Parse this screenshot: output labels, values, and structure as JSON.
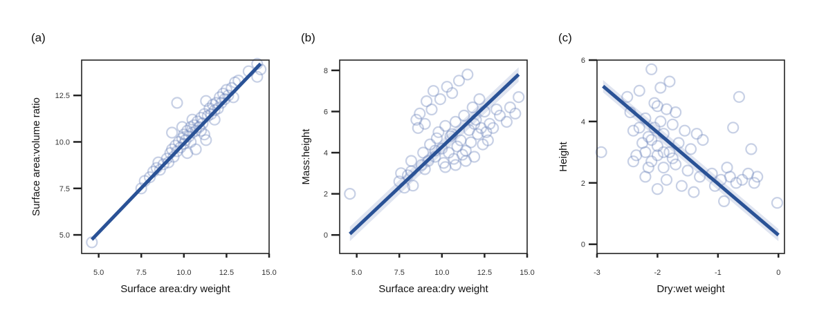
{
  "chart_data": [
    {
      "type": "scatter",
      "panel": "(a)",
      "xlabel": "Surface area:dry weight",
      "ylabel": "Surface area:volume ratio",
      "xlim": [
        4.0,
        15.0
      ],
      "ylim": [
        4.0,
        14.4
      ],
      "xticks": [
        5.0,
        7.5,
        10.0,
        12.5,
        15.0
      ],
      "xtick_labels": [
        "5.0",
        "7.5",
        "10.0",
        "12.5",
        "15.0"
      ],
      "yticks": [
        5.0,
        7.5,
        10.0,
        12.5
      ],
      "ytick_labels": [
        "5.0",
        "7.5",
        "10.0",
        "12.5"
      ],
      "fit": {
        "x": [
          4.6,
          14.5
        ],
        "y": [
          4.75,
          14.2
        ]
      },
      "band_halfwidth": 0.12,
      "points": [
        [
          4.6,
          4.6
        ],
        [
          7.5,
          7.5
        ],
        [
          7.7,
          7.9
        ],
        [
          8.0,
          8.1
        ],
        [
          8.2,
          8.4
        ],
        [
          8.4,
          8.6
        ],
        [
          8.6,
          8.5
        ],
        [
          8.5,
          8.9
        ],
        [
          8.8,
          8.8
        ],
        [
          9.0,
          9.1
        ],
        [
          9.1,
          8.9
        ],
        [
          9.2,
          9.4
        ],
        [
          9.3,
          9.6
        ],
        [
          9.4,
          9.2
        ],
        [
          9.5,
          9.8
        ],
        [
          9.6,
          9.5
        ],
        [
          9.6,
          12.1
        ],
        [
          9.7,
          10.0
        ],
        [
          9.8,
          9.7
        ],
        [
          9.9,
          10.2
        ],
        [
          10.0,
          9.9
        ],
        [
          10.0,
          10.4
        ],
        [
          10.1,
          10.1
        ],
        [
          10.2,
          10.6
        ],
        [
          10.3,
          10.3
        ],
        [
          10.4,
          10.0
        ],
        [
          10.4,
          10.8
        ],
        [
          10.5,
          10.5
        ],
        [
          10.6,
          10.9
        ],
        [
          10.7,
          10.6
        ],
        [
          10.7,
          9.6
        ],
        [
          10.8,
          11.1
        ],
        [
          10.9,
          10.8
        ],
        [
          11.0,
          11.3
        ],
        [
          11.1,
          11.0
        ],
        [
          11.2,
          11.5
        ],
        [
          11.3,
          10.1
        ],
        [
          11.3,
          12.2
        ],
        [
          11.4,
          11.4
        ],
        [
          11.5,
          11.8
        ],
        [
          11.6,
          11.5
        ],
        [
          11.7,
          12.0
        ],
        [
          11.8,
          11.7
        ],
        [
          11.9,
          12.1
        ],
        [
          12.0,
          11.8
        ],
        [
          12.1,
          12.4
        ],
        [
          12.2,
          12.1
        ],
        [
          12.3,
          12.6
        ],
        [
          12.4,
          12.3
        ],
        [
          12.5,
          12.8
        ],
        [
          12.6,
          12.5
        ],
        [
          12.8,
          12.9
        ],
        [
          12.9,
          12.4
        ],
        [
          13.0,
          13.2
        ],
        [
          13.2,
          13.3
        ],
        [
          13.8,
          13.8
        ],
        [
          14.3,
          14.2
        ],
        [
          14.3,
          13.5
        ],
        [
          14.5,
          13.9
        ],
        [
          9.3,
          10.5
        ],
        [
          10.2,
          9.4
        ],
        [
          11.0,
          10.6
        ],
        [
          11.8,
          11.2
        ],
        [
          9.9,
          10.8
        ],
        [
          10.5,
          11.2
        ],
        [
          11.2,
          10.4
        ]
      ]
    },
    {
      "type": "scatter",
      "panel": "(b)",
      "xlabel": "Surface area:dry weight",
      "ylabel": "Mass:height",
      "xlim": [
        4.0,
        15.0
      ],
      "ylim": [
        -0.9,
        8.5
      ],
      "xticks": [
        5.0,
        7.5,
        10.0,
        12.5,
        15.0
      ],
      "xtick_labels": [
        "5.0",
        "7.5",
        "10.0",
        "12.5",
        "15.0"
      ],
      "yticks": [
        0,
        2,
        4,
        6,
        8
      ],
      "ytick_labels": [
        "0",
        "2",
        "4",
        "6",
        "8"
      ],
      "fit": {
        "x": [
          4.6,
          14.5
        ],
        "y": [
          0.05,
          7.8
        ]
      },
      "band_halfwidth": 0.35,
      "points": [
        [
          4.6,
          2.0
        ],
        [
          7.5,
          2.6
        ],
        [
          7.6,
          3.0
        ],
        [
          7.8,
          2.3
        ],
        [
          8.0,
          2.9
        ],
        [
          8.2,
          3.1
        ],
        [
          8.3,
          2.4
        ],
        [
          8.5,
          5.6
        ],
        [
          8.6,
          5.2
        ],
        [
          8.7,
          5.9
        ],
        [
          8.8,
          3.4
        ],
        [
          8.9,
          4.0
        ],
        [
          9.0,
          5.4
        ],
        [
          9.1,
          6.5
        ],
        [
          9.2,
          3.6
        ],
        [
          9.3,
          4.4
        ],
        [
          9.4,
          6.1
        ],
        [
          9.5,
          7.0
        ],
        [
          9.6,
          3.8
        ],
        [
          9.7,
          4.7
        ],
        [
          9.8,
          5.0
        ],
        [
          9.9,
          6.6
        ],
        [
          10.0,
          4.2
        ],
        [
          10.1,
          3.5
        ],
        [
          10.2,
          5.3
        ],
        [
          10.3,
          7.2
        ],
        [
          10.4,
          4.0
        ],
        [
          10.5,
          4.8
        ],
        [
          10.6,
          6.9
        ],
        [
          10.7,
          3.7
        ],
        [
          10.8,
          5.5
        ],
        [
          10.9,
          4.3
        ],
        [
          11.0,
          7.5
        ],
        [
          11.1,
          4.6
        ],
        [
          11.2,
          3.9
        ],
        [
          11.3,
          5.8
        ],
        [
          11.4,
          4.1
        ],
        [
          11.5,
          7.8
        ],
        [
          11.6,
          5.1
        ],
        [
          11.7,
          4.5
        ],
        [
          11.8,
          6.2
        ],
        [
          11.9,
          3.8
        ],
        [
          12.0,
          5.6
        ],
        [
          12.1,
          4.9
        ],
        [
          12.2,
          6.6
        ],
        [
          12.3,
          5.2
        ],
        [
          12.4,
          4.4
        ],
        [
          12.5,
          6.0
        ],
        [
          12.6,
          5.0
        ],
        [
          12.7,
          4.6
        ],
        [
          12.8,
          5.4
        ],
        [
          13.0,
          5.2
        ],
        [
          13.2,
          6.1
        ],
        [
          13.4,
          5.8
        ],
        [
          13.8,
          5.5
        ],
        [
          14.0,
          6.2
        ],
        [
          14.3,
          5.9
        ],
        [
          14.5,
          6.7
        ],
        [
          9.6,
          4.1
        ],
        [
          10.2,
          3.3
        ],
        [
          10.8,
          3.4
        ],
        [
          11.4,
          3.6
        ],
        [
          9.0,
          3.2
        ],
        [
          8.2,
          3.6
        ],
        [
          10.6,
          4.9
        ],
        [
          11.9,
          5.4
        ]
      ]
    },
    {
      "type": "scatter",
      "panel": "(c)",
      "xlabel": "Dry:wet weight",
      "ylabel": "Height",
      "xlim": [
        -3.0,
        0.1
      ],
      "ylim": [
        -0.3,
        6.0
      ],
      "xticks": [
        -3,
        -2,
        -1,
        0
      ],
      "xtick_labels": [
        "-3",
        "-2",
        "-1",
        "0"
      ],
      "yticks": [
        0,
        2,
        4,
        6
      ],
      "ytick_labels": [
        "0",
        "2",
        "4",
        "6"
      ],
      "fit": {
        "x": [
          -2.9,
          0.0
        ],
        "y": [
          5.15,
          0.3
        ]
      },
      "band_halfwidth": 0.2,
      "points": [
        [
          -2.93,
          3.0
        ],
        [
          -2.5,
          4.8
        ],
        [
          -2.45,
          4.3
        ],
        [
          -2.4,
          3.7
        ],
        [
          -2.35,
          2.9
        ],
        [
          -2.3,
          5.0
        ],
        [
          -2.25,
          3.3
        ],
        [
          -2.2,
          4.1
        ],
        [
          -2.2,
          2.2
        ],
        [
          -2.15,
          3.5
        ],
        [
          -2.1,
          5.7
        ],
        [
          -2.1,
          2.7
        ],
        [
          -2.05,
          4.6
        ],
        [
          -2.05,
          3.8
        ],
        [
          -2.0,
          3.2
        ],
        [
          -2.0,
          1.8
        ],
        [
          -1.95,
          5.1
        ],
        [
          -1.95,
          4.0
        ],
        [
          -1.9,
          2.5
        ],
        [
          -1.9,
          3.6
        ],
        [
          -1.85,
          4.4
        ],
        [
          -1.85,
          2.1
        ],
        [
          -1.8,
          3.0
        ],
        [
          -1.8,
          5.3
        ],
        [
          -1.75,
          3.9
        ],
        [
          -1.7,
          2.6
        ],
        [
          -1.7,
          4.3
        ],
        [
          -1.65,
          3.3
        ],
        [
          -1.6,
          1.9
        ],
        [
          -1.55,
          3.7
        ],
        [
          -1.5,
          2.4
        ],
        [
          -1.45,
          3.1
        ],
        [
          -1.4,
          1.7
        ],
        [
          -1.35,
          3.6
        ],
        [
          -1.3,
          2.2
        ],
        [
          -1.25,
          3.4
        ],
        [
          -1.1,
          2.3
        ],
        [
          -1.05,
          1.9
        ],
        [
          -0.95,
          2.1
        ],
        [
          -0.9,
          1.4
        ],
        [
          -0.85,
          2.5
        ],
        [
          -0.8,
          2.2
        ],
        [
          -0.75,
          3.8
        ],
        [
          -0.7,
          2.0
        ],
        [
          -0.65,
          4.8
        ],
        [
          -0.6,
          2.1
        ],
        [
          -0.5,
          2.3
        ],
        [
          -0.45,
          3.1
        ],
        [
          -0.4,
          2.0
        ],
        [
          -0.35,
          2.2
        ],
        [
          -0.02,
          1.35
        ],
        [
          -2.2,
          3.0
        ],
        [
          -2.1,
          3.4
        ],
        [
          -2.0,
          2.9
        ],
        [
          -1.9,
          3.0
        ],
        [
          -2.3,
          3.8
        ],
        [
          -2.15,
          2.5
        ],
        [
          -1.75,
          2.8
        ],
        [
          -2.0,
          4.5
        ],
        [
          -2.4,
          2.7
        ]
      ]
    }
  ]
}
